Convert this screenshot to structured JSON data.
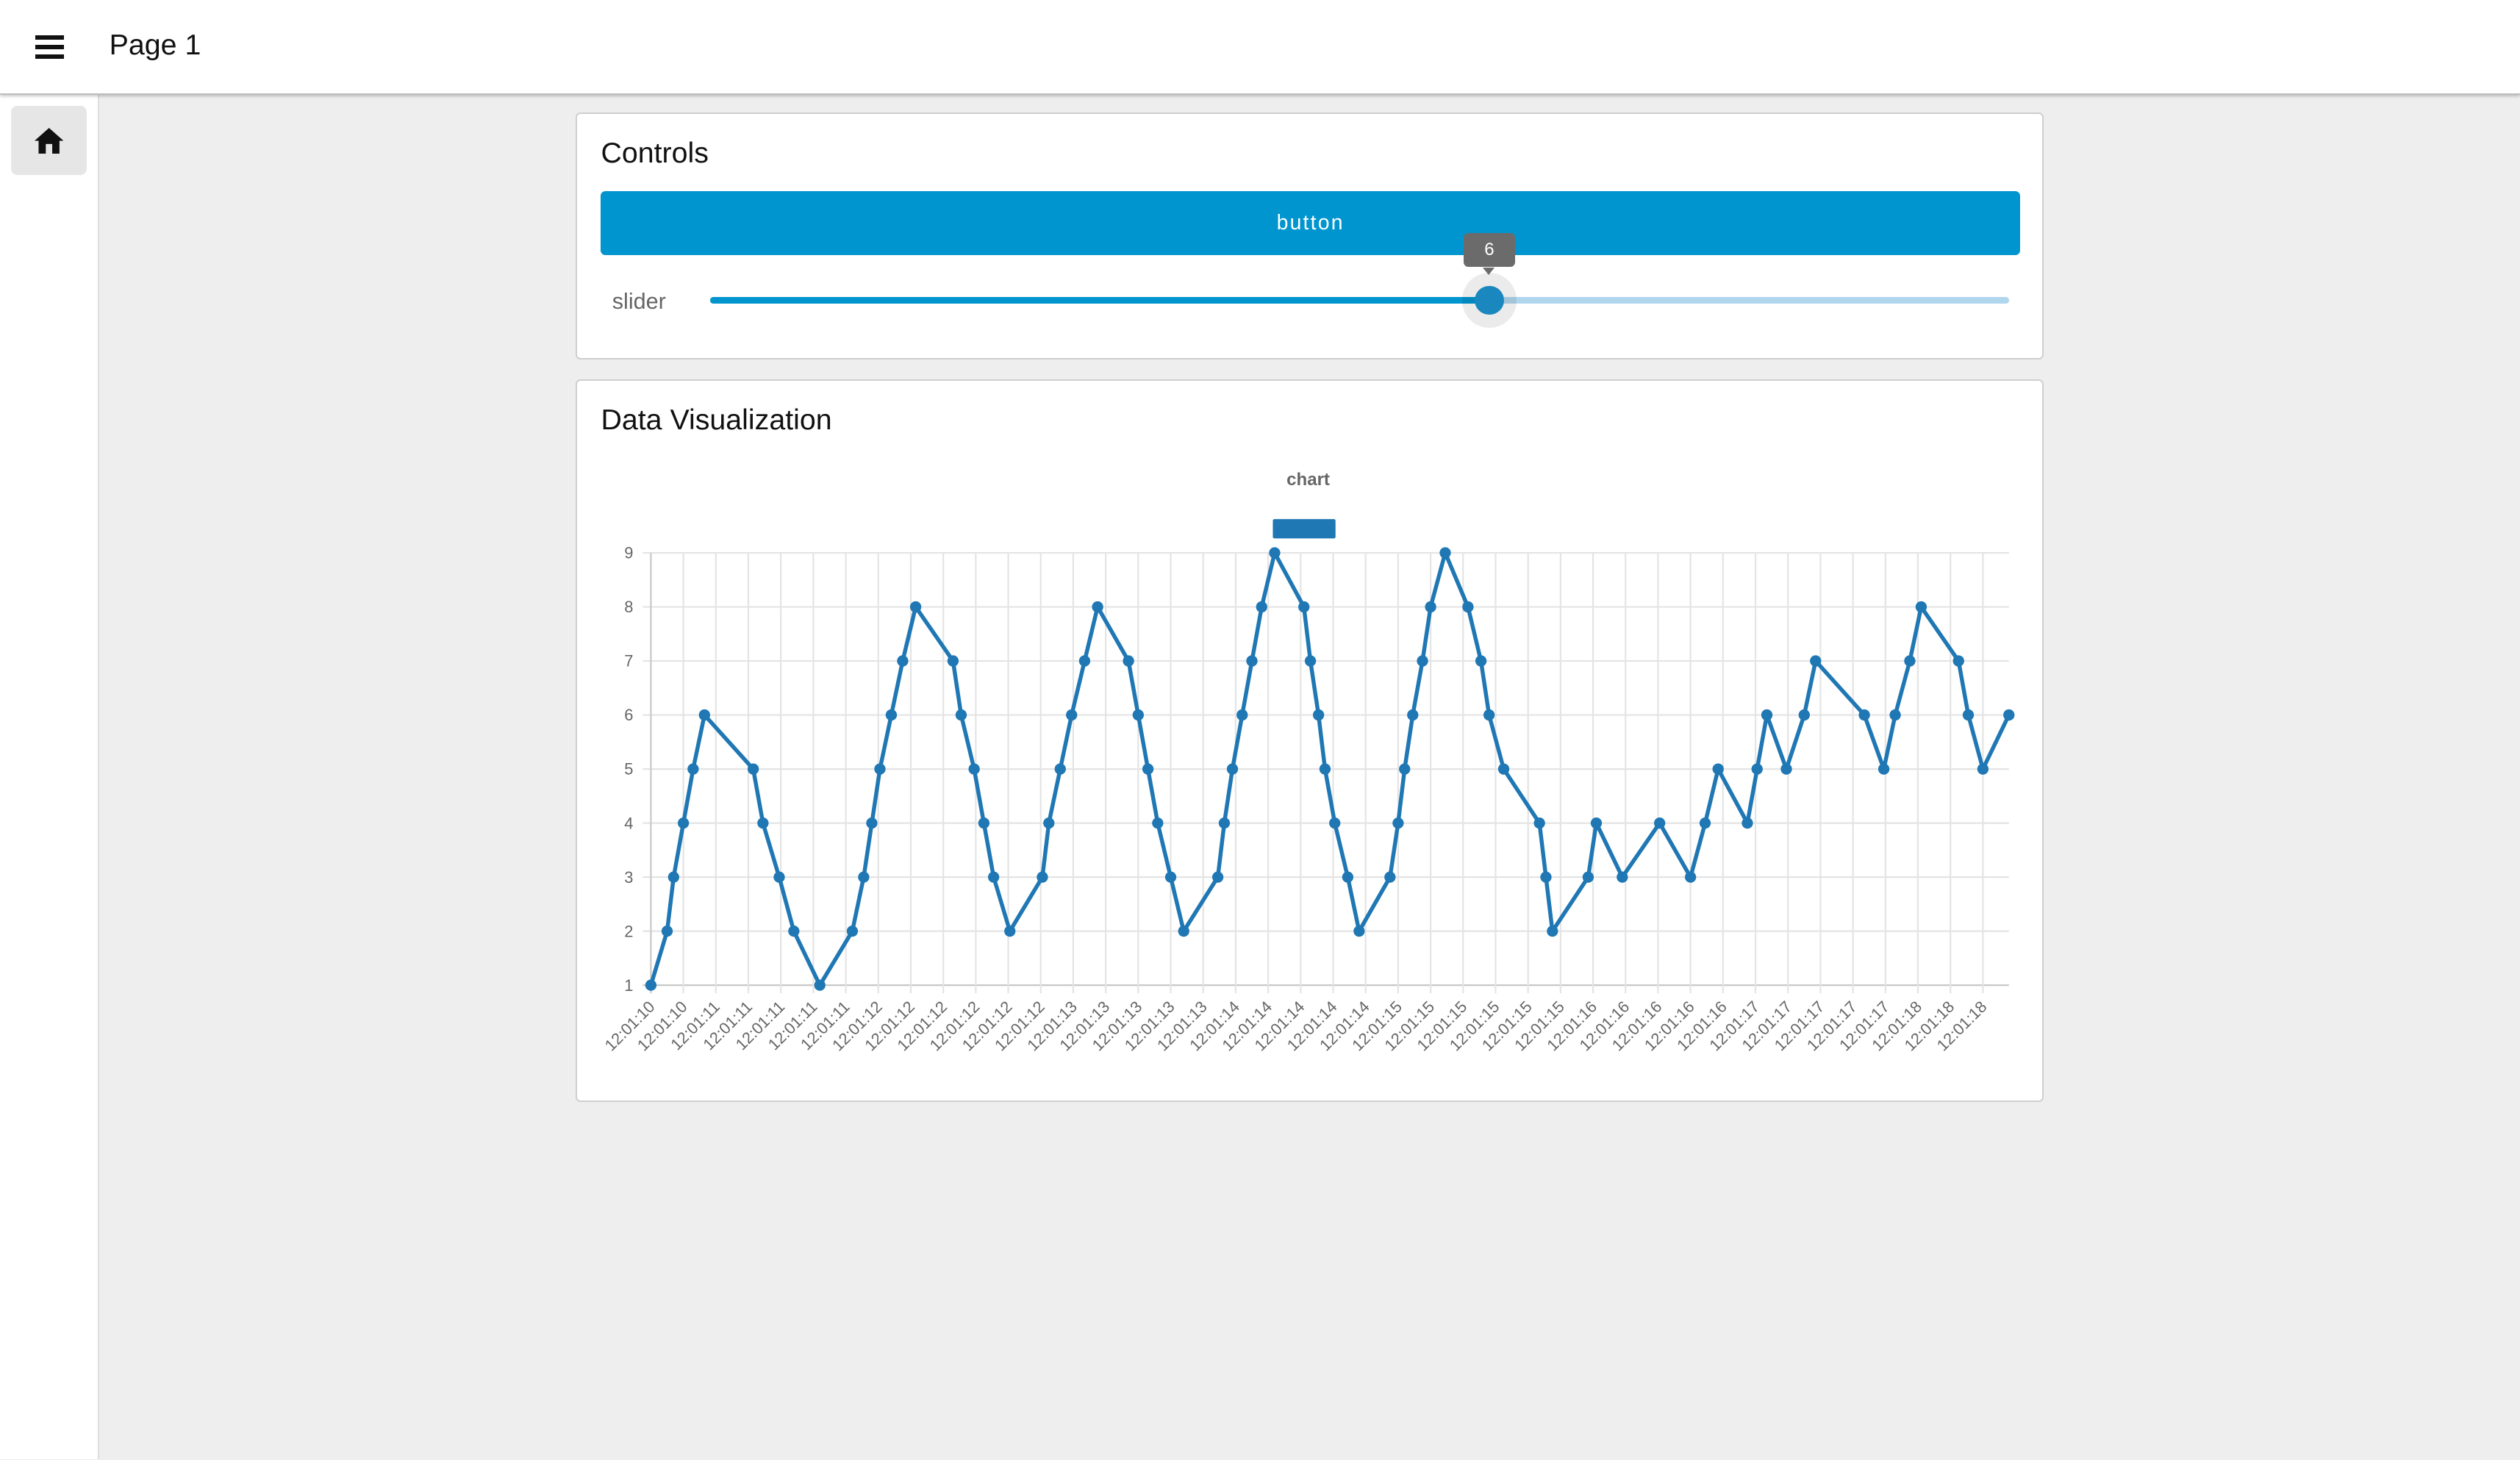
{
  "header": {
    "title": "Page 1",
    "menu_icon": "hamburger-menu-icon"
  },
  "sidebar": {
    "items": [
      {
        "icon": "home-icon"
      }
    ]
  },
  "controls": {
    "title": "Controls",
    "button_label": "button",
    "slider": {
      "label": "slider",
      "value": 6,
      "min": 0,
      "max": 10,
      "value_label": "6"
    },
    "accent": "#0195cf"
  },
  "viz": {
    "title": "Data Visualization"
  },
  "chart_data": {
    "type": "line",
    "title": "chart",
    "legend": {
      "placement": "top",
      "entries": [
        ""
      ]
    },
    "color": "#1f77b4",
    "grid": true,
    "ylim": [
      1,
      9
    ],
    "y_ticks": [
      "1",
      "2",
      "3",
      "4",
      "5",
      "6",
      "7",
      "8",
      "9"
    ],
    "xlim": [
      "12:01:10.60",
      "12:01:18.96"
    ],
    "x_tick_labels": [
      "12:01:10",
      "12:01:10",
      "12:01:11",
      "12:01:11",
      "12:01:11",
      "12:01:11",
      "12:01:11",
      "12:01:12",
      "12:01:12",
      "12:01:12",
      "12:01:12",
      "12:01:12",
      "12:01:12",
      "12:01:13",
      "12:01:13",
      "12:01:13",
      "12:01:13",
      "12:01:13",
      "12:01:14",
      "12:01:14",
      "12:01:14",
      "12:01:14",
      "12:01:14",
      "12:01:15",
      "12:01:15",
      "12:01:15",
      "12:01:15",
      "12:01:15",
      "12:01:15",
      "12:01:16",
      "12:01:16",
      "12:01:16",
      "12:01:16",
      "12:01:16",
      "12:01:17",
      "12:01:17",
      "12:01:17",
      "12:01:17",
      "12:01:17",
      "12:01:18",
      "12:01:18",
      "12:01:18"
    ],
    "x": [
      "12:01:10.60",
      "12:01:10.70",
      "12:01:10.74",
      "12:01:10.80",
      "12:01:10.86",
      "12:01:10.93",
      "12:01:11.23",
      "12:01:11.29",
      "12:01:11.39",
      "12:01:11.48",
      "12:01:11.64",
      "12:01:11.84",
      "12:01:11.91",
      "12:01:11.96",
      "12:01:12.01",
      "12:01:12.08",
      "12:01:12.15",
      "12:01:12.23",
      "12:01:12.46",
      "12:01:12.51",
      "12:01:12.59",
      "12:01:12.65",
      "12:01:12.71",
      "12:01:12.81",
      "12:01:13.01",
      "12:01:13.05",
      "12:01:13.12",
      "12:01:13.19",
      "12:01:13.27",
      "12:01:13.35",
      "12:01:13.54",
      "12:01:13.60",
      "12:01:13.66",
      "12:01:13.72",
      "12:01:13.80",
      "12:01:13.88",
      "12:01:14.09",
      "12:01:14.13",
      "12:01:14.18",
      "12:01:14.24",
      "12:01:14.30",
      "12:01:14.36",
      "12:01:14.44",
      "12:01:14.62",
      "12:01:14.66",
      "12:01:14.71",
      "12:01:14.75",
      "12:01:14.81",
      "12:01:14.89",
      "12:01:14.96",
      "12:01:15.15",
      "12:01:15.20",
      "12:01:15.24",
      "12:01:15.29",
      "12:01:15.35",
      "12:01:15.40",
      "12:01:15.49",
      "12:01:15.63",
      "12:01:15.71",
      "12:01:15.76",
      "12:01:15.85",
      "12:01:16.07",
      "12:01:16.11",
      "12:01:16.15",
      "12:01:16.37",
      "12:01:16.42",
      "12:01:16.58",
      "12:01:16.81",
      "12:01:17.00",
      "12:01:17.09",
      "12:01:17.17",
      "12:01:17.35",
      "12:01:17.41",
      "12:01:17.47",
      "12:01:17.59",
      "12:01:17.70",
      "12:01:17.77",
      "12:01:18.07",
      "12:01:18.19",
      "12:01:18.26",
      "12:01:18.35",
      "12:01:18.42",
      "12:01:18.65",
      "12:01:18.71",
      "12:01:18.80",
      "12:01:18.96"
    ],
    "y": [
      1,
      2,
      3,
      4,
      5,
      6,
      5,
      4,
      3,
      2,
      1,
      2,
      3,
      4,
      5,
      6,
      7,
      8,
      7,
      6,
      5,
      4,
      3,
      2,
      3,
      4,
      5,
      6,
      7,
      8,
      7,
      6,
      5,
      4,
      3,
      2,
      3,
      4,
      5,
      6,
      7,
      8,
      9,
      8,
      7,
      6,
      5,
      4,
      3,
      2,
      3,
      4,
      5,
      6,
      7,
      8,
      9,
      8,
      7,
      6,
      5,
      4,
      3,
      2,
      3,
      4,
      3,
      4,
      3,
      4,
      5,
      4,
      5,
      6,
      5,
      6,
      7,
      6,
      5,
      6,
      7,
      8,
      7,
      6,
      5,
      6
    ]
  }
}
